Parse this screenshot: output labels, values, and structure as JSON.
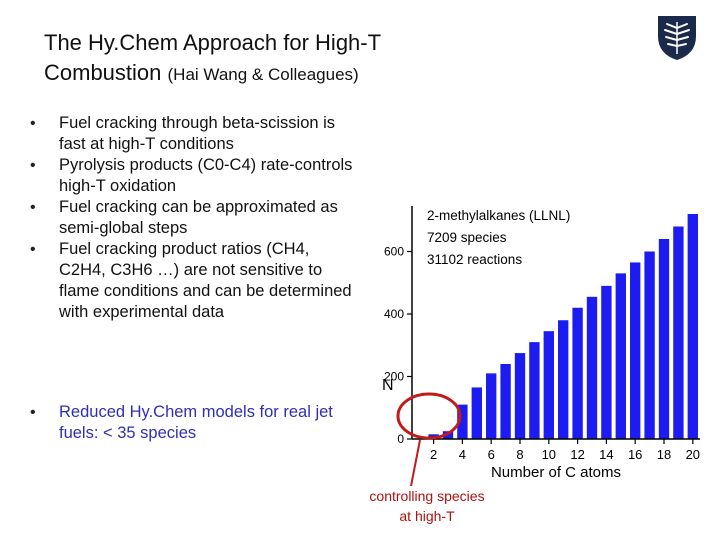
{
  "slide": {
    "title_line1": "The Hy.Chem Approach for High-T",
    "title_line2": "Combustion",
    "title_suffix": "(Hai Wang & Colleagues)",
    "bullets": [
      "Fuel cracking through beta-scission is fast at high-T conditions",
      "Pyrolysis products (C0-C4) rate-controls high-T oxidation",
      "Fuel cracking can be approximated as semi-global steps",
      "Fuel cracking product ratios (CH4, C2H4, C3H6 …) are not sensitive to flame conditions and can be determined with experimental data"
    ],
    "bullet_highlight": "Reduced Hy.Chem models for real jet fuels: < 35 species",
    "annotation_line1": "controlling species",
    "annotation_line2": "at high-T",
    "colors": {
      "accent_blue": "#2f2fb4",
      "bar": "#1c1cf0",
      "highlight": "#c41a1a"
    }
  },
  "chart_data": {
    "type": "bar",
    "x": [
      1,
      2,
      3,
      4,
      5,
      6,
      7,
      8,
      9,
      10,
      11,
      12,
      13,
      14,
      15,
      16,
      17,
      18,
      19,
      20
    ],
    "values": [
      0,
      15,
      25,
      110,
      165,
      210,
      240,
      275,
      310,
      345,
      380,
      420,
      455,
      490,
      530,
      565,
      600,
      640,
      680,
      720
    ],
    "xticks": [
      "2",
      "4",
      "6",
      "8",
      "10",
      "12",
      "14",
      "16",
      "18",
      "20"
    ],
    "yticks": [
      "0",
      "200",
      "400",
      "600"
    ],
    "xlabel": "Number of C atoms",
    "ylabel": "N",
    "ylim": [
      0,
      720
    ],
    "annotation": [
      "2-methylalkanes (LLNL)",
      "7209 species",
      "31102 reactions"
    ]
  }
}
